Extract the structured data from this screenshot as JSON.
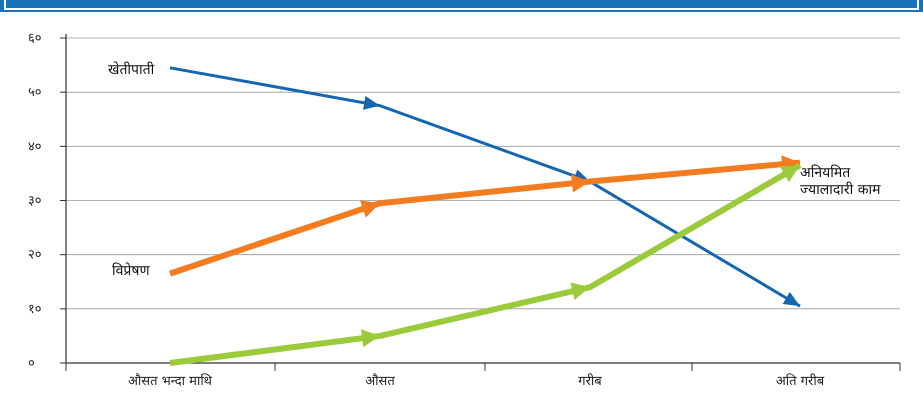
{
  "chart_data": {
    "type": "line",
    "title": "",
    "xlabel": "",
    "ylabel": "",
    "categories": [
      "औसत भन्दा माथि",
      "औसत",
      "गरीब",
      "अति गरीब"
    ],
    "ylim": [
      0,
      60
    ],
    "yticks": [
      "०",
      "१०",
      "२०",
      "३०",
      "४०",
      "५०",
      "६०"
    ],
    "ytick_values": [
      0,
      10,
      20,
      30,
      40,
      50,
      60
    ],
    "grid": true,
    "series": [
      {
        "name": "खेतीपाती",
        "color": "#1565b0",
        "values": [
          54.5,
          47.5,
          33.5,
          10.5
        ]
      },
      {
        "name": "विप्रेषण",
        "color": "#f47c20",
        "values": [
          16.5,
          29.5,
          33.5,
          37
        ]
      },
      {
        "name_lines": [
          "अनियमित",
          "ज्यालादारी काम"
        ],
        "color": "#9bcb3b",
        "values": [
          0,
          5,
          14,
          36.5
        ]
      }
    ]
  }
}
